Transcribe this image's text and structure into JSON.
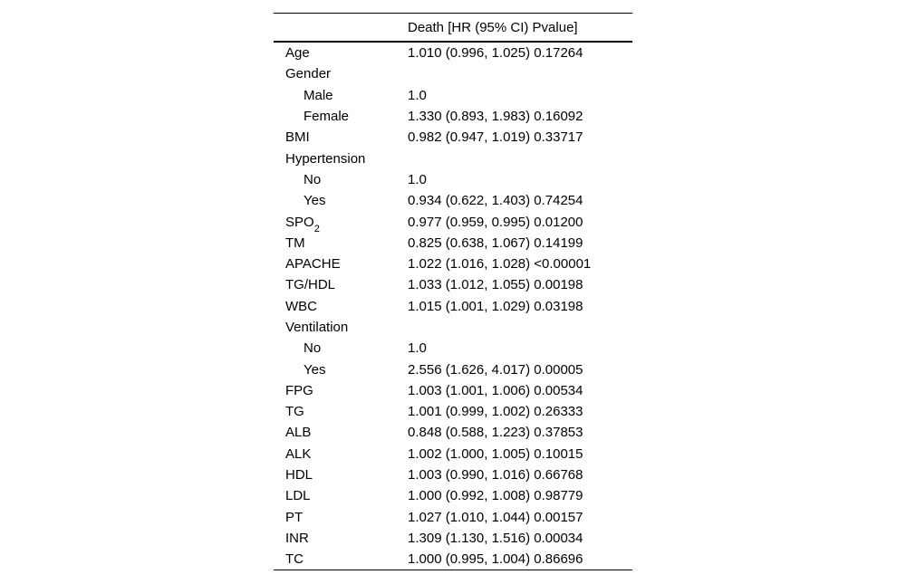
{
  "colors": {
    "background": "#ffffff",
    "text": "#000000",
    "rule": "#000000"
  },
  "table": {
    "header": {
      "col2": "Death [HR (95% CI) Pvalue]"
    },
    "rows": [
      {
        "label": "Age",
        "value": "1.010 (0.996, 1.025) 0.17264",
        "indent": false
      },
      {
        "label": "Gender",
        "value": "",
        "indent": false
      },
      {
        "label": "Male",
        "value": "1.0",
        "indent": true
      },
      {
        "label": "Female",
        "value": "1.330 (0.893, 1.983) 0.16092",
        "indent": true
      },
      {
        "label": "BMI",
        "value": "0.982 (0.947, 1.019) 0.33717",
        "indent": false
      },
      {
        "label": "Hypertension",
        "value": "",
        "indent": false
      },
      {
        "label": "No",
        "value": "1.0",
        "indent": true
      },
      {
        "label": "Yes",
        "value": "0.934 (0.622, 1.403) 0.74254",
        "indent": true
      },
      {
        "label": "SPO",
        "sub": "2",
        "value": "0.977 (0.959, 0.995) 0.01200",
        "indent": false
      },
      {
        "label": "TM",
        "value": "0.825 (0.638, 1.067) 0.14199",
        "indent": false
      },
      {
        "label": "APACHE",
        "value": "1.022 (1.016, 1.028) <0.00001",
        "indent": false
      },
      {
        "label": "TG/HDL",
        "value": "1.033 (1.012, 1.055) 0.00198",
        "indent": false
      },
      {
        "label": "WBC",
        "value": "1.015 (1.001, 1.029) 0.03198",
        "indent": false
      },
      {
        "label": "Ventilation",
        "value": "",
        "indent": false
      },
      {
        "label": "No",
        "value": "1.0",
        "indent": true
      },
      {
        "label": "Yes",
        "value": "2.556 (1.626, 4.017) 0.00005",
        "indent": true
      },
      {
        "label": "FPG",
        "value": "1.003 (1.001, 1.006) 0.00534",
        "indent": false
      },
      {
        "label": "TG",
        "value": "1.001 (0.999, 1.002) 0.26333",
        "indent": false
      },
      {
        "label": "ALB",
        "value": "0.848 (0.588, 1.223) 0.37853",
        "indent": false
      },
      {
        "label": "ALK",
        "value": "1.002 (1.000, 1.005) 0.10015",
        "indent": false
      },
      {
        "label": "HDL",
        "value": "1.003 (0.990, 1.016) 0.66768",
        "indent": false
      },
      {
        "label": "LDL",
        "value": "1.000 (0.992, 1.008) 0.98779",
        "indent": false
      },
      {
        "label": "PT",
        "value": "1.027 (1.010, 1.044) 0.00157",
        "indent": false
      },
      {
        "label": "INR",
        "value": "1.309 (1.130, 1.516) 0.00034",
        "indent": false
      },
      {
        "label": "TC",
        "value": "1.000 (0.995, 1.004) 0.86696",
        "indent": false
      }
    ]
  }
}
